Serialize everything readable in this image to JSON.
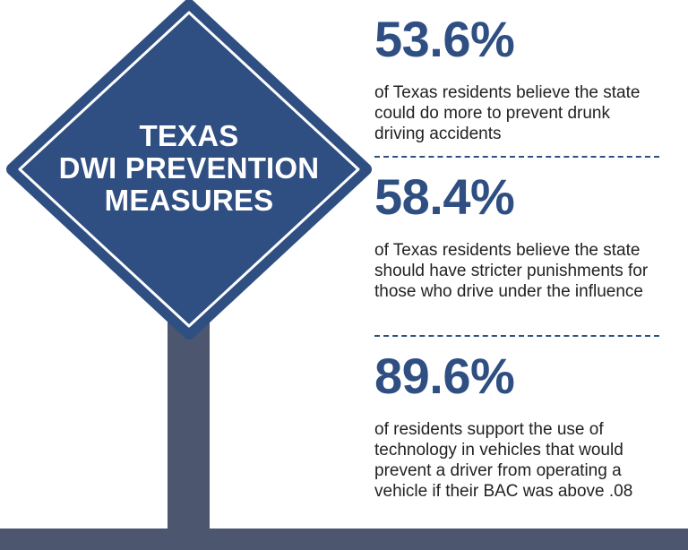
{
  "sign": {
    "title_lines": [
      "TEXAS",
      "DWI PREVENTION",
      "MEASURES"
    ]
  },
  "stats": [
    {
      "percent": "53.6%",
      "description": "of Texas residents believe the state could do more to prevent drunk driving accidents"
    },
    {
      "percent": "58.4%",
      "description": "of Texas residents believe the state should have stricter punishments for those who drive under the influence"
    },
    {
      "percent": "89.6%",
      "description": "of residents support the use of technology in vehicles that would prevent a driver from operating a vehicle if their BAC was above .08"
    }
  ],
  "colors": {
    "sign_blue": "#2f4f82",
    "post_gray": "#4c566e",
    "percent_blue": "#2f4f82"
  }
}
